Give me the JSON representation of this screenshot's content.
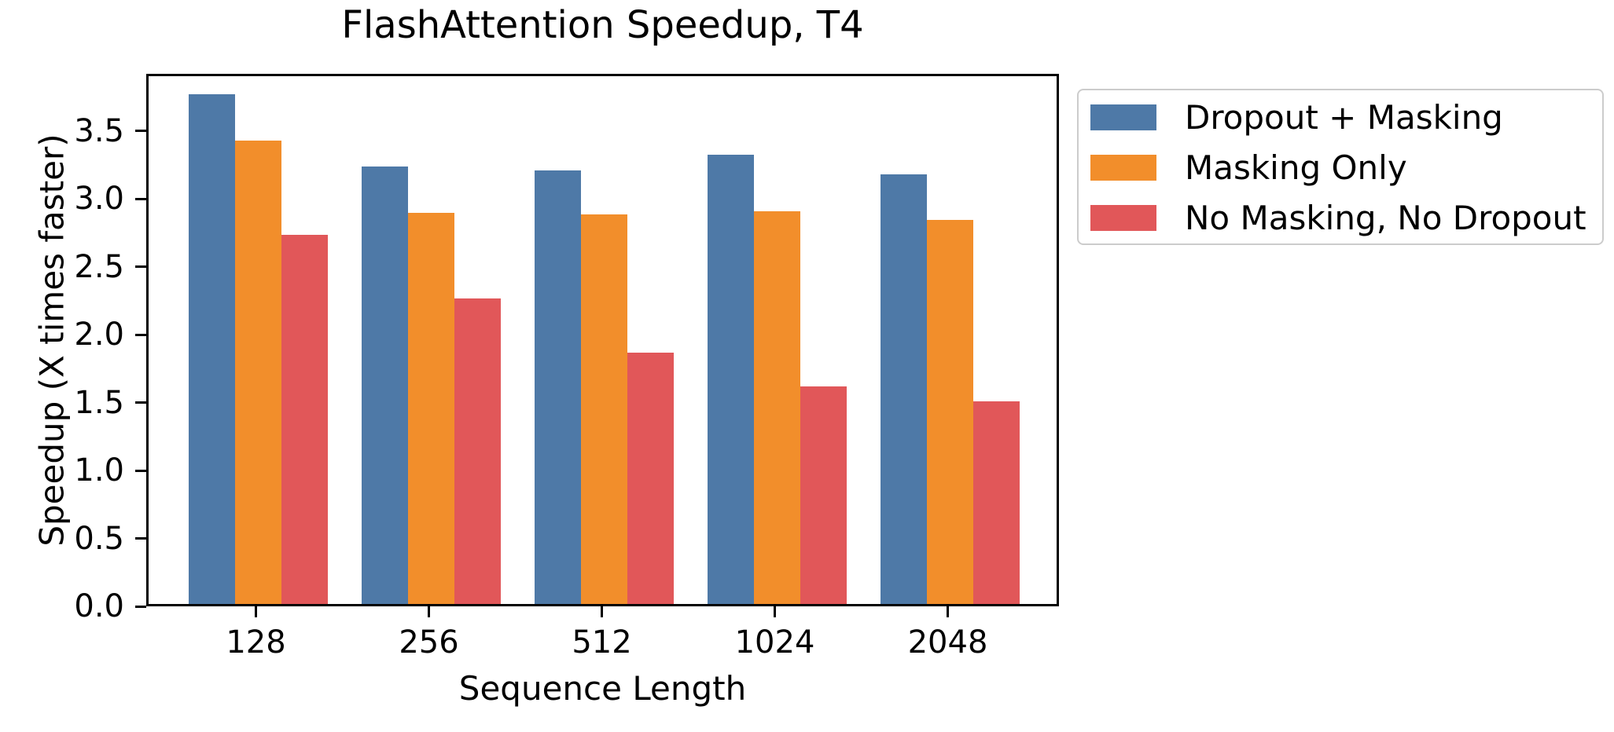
{
  "chart_data": {
    "type": "bar",
    "title": "FlashAttention Speedup, T4",
    "xlabel": "Sequence Length",
    "ylabel": "Speedup (X times faster)",
    "categories": [
      "128",
      "256",
      "512",
      "1024",
      "2048"
    ],
    "series": [
      {
        "name": "Dropout + Masking",
        "color": "#4E79A7",
        "values": [
          3.75,
          3.22,
          3.19,
          3.31,
          3.16
        ]
      },
      {
        "name": "Masking Only",
        "color": "#F28E2B",
        "values": [
          3.41,
          2.88,
          2.87,
          2.89,
          2.83
        ]
      },
      {
        "name": "No Masking, No Dropout",
        "color": "#E15759",
        "values": [
          2.72,
          2.25,
          1.85,
          1.6,
          1.49
        ]
      }
    ],
    "ylim": [
      0,
      3.92
    ],
    "yticks": [
      0.0,
      0.5,
      1.0,
      1.5,
      2.0,
      2.5,
      3.0,
      3.5
    ],
    "ytick_labels": [
      "0.0",
      "0.5",
      "1.0",
      "1.5",
      "2.0",
      "2.5",
      "3.0",
      "3.5"
    ],
    "grid": false,
    "legend_position": "outside upper right",
    "axis_color": "#000000",
    "background_color": "#ffffff"
  }
}
